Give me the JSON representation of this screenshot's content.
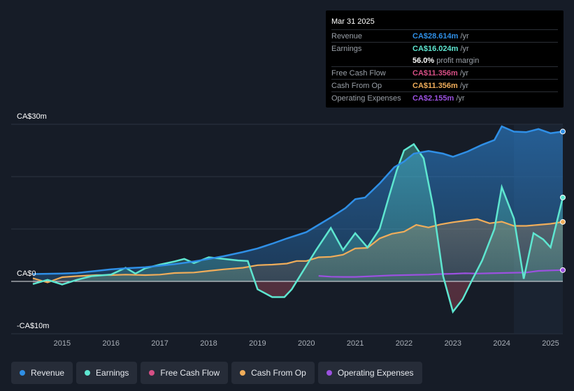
{
  "chart_data": {
    "type": "area",
    "y_axis_labels": [
      "CA$30m",
      "CA$0",
      "-CA$10m"
    ],
    "x_tick_labels": [
      "2015",
      "2016",
      "2017",
      "2018",
      "2019",
      "2020",
      "2021",
      "2022",
      "2023",
      "2024",
      "2025"
    ],
    "ylim": [
      -10,
      30
    ],
    "xlim": [
      2014.4,
      2025.25
    ],
    "forecast_start": 2024.25,
    "series": [
      {
        "name": "Revenue",
        "color": "#2f8fe6",
        "x": [
          2014.4,
          2015.0,
          2015.3,
          2015.7,
          2016.0,
          2016.3,
          2016.7,
          2017.0,
          2017.3,
          2017.7,
          2018.0,
          2018.3,
          2018.7,
          2019.0,
          2019.3,
          2019.6,
          2019.8,
          2020.0,
          2020.25,
          2020.5,
          2020.8,
          2021.0,
          2021.2,
          2021.5,
          2021.8,
          2022.0,
          2022.2,
          2022.5,
          2022.8,
          2023.0,
          2023.3,
          2023.6,
          2023.85,
          2024.0,
          2024.25,
          2024.5,
          2024.75,
          2025.0,
          2025.25
        ],
        "values": [
          1.4,
          1.5,
          1.6,
          2.0,
          2.3,
          2.5,
          2.7,
          3.0,
          3.3,
          3.8,
          4.3,
          4.8,
          5.6,
          6.3,
          7.2,
          8.2,
          8.8,
          9.4,
          10.8,
          12.2,
          14.0,
          15.7,
          16.0,
          18.7,
          21.8,
          22.9,
          24.4,
          24.9,
          24.4,
          23.8,
          24.8,
          26.1,
          27.0,
          29.6,
          28.6,
          28.5,
          29.1,
          28.3,
          28.614
        ]
      },
      {
        "name": "Earnings",
        "color": "#5ee6d0",
        "x": [
          2014.4,
          2014.7,
          2015.0,
          2015.3,
          2015.6,
          2016.0,
          2016.3,
          2016.5,
          2016.7,
          2017.0,
          2017.3,
          2017.5,
          2017.7,
          2018.0,
          2018.3,
          2018.6,
          2018.8,
          2019.0,
          2019.3,
          2019.55,
          2019.7,
          2020.0,
          2020.2,
          2020.5,
          2020.75,
          2021.0,
          2021.25,
          2021.5,
          2021.7,
          2021.85,
          2022.0,
          2022.2,
          2022.4,
          2022.6,
          2022.8,
          2023.0,
          2023.2,
          2023.4,
          2023.6,
          2023.85,
          2024.0,
          2024.25,
          2024.45,
          2024.65,
          2024.85,
          2025.0,
          2025.25
        ],
        "values": [
          -0.5,
          0.3,
          -0.6,
          0.3,
          1.0,
          1.3,
          2.6,
          1.5,
          2.5,
          3.2,
          3.8,
          4.3,
          3.5,
          4.6,
          4.3,
          4.0,
          3.9,
          -1.5,
          -3.0,
          -3.0,
          -1.5,
          3.0,
          6.0,
          10.2,
          6.0,
          9.2,
          6.5,
          10.0,
          16.5,
          21.2,
          25.0,
          26.2,
          23.5,
          14.0,
          1.0,
          -5.8,
          -3.4,
          0.4,
          4.0,
          10.0,
          18.0,
          12.0,
          0.5,
          9.2,
          8.0,
          6.5,
          16.024
        ]
      },
      {
        "name": "Free Cash Flow",
        "color": "#d64f85",
        "x": [],
        "values": []
      },
      {
        "name": "Cash From Op",
        "color": "#f0ad5a",
        "x": [
          2014.4,
          2014.7,
          2015.0,
          2015.3,
          2015.7,
          2016.0,
          2016.3,
          2016.7,
          2017.0,
          2017.3,
          2017.7,
          2018.0,
          2018.3,
          2018.7,
          2019.0,
          2019.3,
          2019.6,
          2019.8,
          2020.0,
          2020.25,
          2020.5,
          2020.75,
          2021.0,
          2021.25,
          2021.5,
          2021.75,
          2022.0,
          2022.25,
          2022.5,
          2022.75,
          2023.0,
          2023.25,
          2023.5,
          2023.75,
          2024.0,
          2024.25,
          2024.5,
          2024.75,
          2025.0,
          2025.25
        ],
        "values": [
          0.6,
          -0.2,
          0.8,
          1.0,
          1.2,
          1.2,
          1.3,
          1.2,
          1.3,
          1.6,
          1.7,
          2.0,
          2.3,
          2.6,
          3.1,
          3.2,
          3.4,
          3.9,
          3.9,
          4.6,
          4.7,
          5.1,
          6.3,
          6.4,
          8.2,
          9.1,
          9.5,
          10.8,
          10.3,
          10.9,
          11.3,
          11.6,
          11.9,
          11.1,
          11.4,
          10.6,
          10.6,
          10.8,
          11.0,
          11.356
        ]
      },
      {
        "name": "Operating Expenses",
        "color": "#9b51e0",
        "x": [
          2020.25,
          2020.5,
          2020.75,
          2021.0,
          2021.25,
          2021.5,
          2021.75,
          2022.0,
          2022.25,
          2022.5,
          2022.75,
          2023.0,
          2023.25,
          2023.5,
          2023.75,
          2024.0,
          2024.25,
          2024.5,
          2024.75,
          2025.0,
          2025.25
        ],
        "values": [
          1.05,
          0.9,
          0.85,
          0.85,
          0.95,
          1.05,
          1.15,
          1.2,
          1.25,
          1.3,
          1.4,
          1.45,
          1.55,
          1.5,
          1.55,
          1.6,
          1.65,
          1.7,
          2.0,
          2.1,
          2.155
        ]
      }
    ]
  },
  "tooltip": {
    "date": "Mar 31 2025",
    "rows": [
      {
        "label": "Revenue",
        "value": "CA$28.614m",
        "unit": "/yr",
        "color": "#2f8fe6"
      },
      {
        "label": "Earnings",
        "value": "CA$16.024m",
        "unit": "/yr",
        "color": "#5ee6d0"
      },
      {
        "label": "",
        "value": "56.0%",
        "unit": "profit margin",
        "color": "#ffffff"
      },
      {
        "label": "Free Cash Flow",
        "value": "CA$11.356m",
        "unit": "/yr",
        "color": "#d64f85"
      },
      {
        "label": "Cash From Op",
        "value": "CA$11.356m",
        "unit": "/yr",
        "color": "#f0ad5a"
      },
      {
        "label": "Operating Expenses",
        "value": "CA$2.155m",
        "unit": "/yr",
        "color": "#9b51e0"
      }
    ]
  },
  "legend": [
    {
      "label": "Revenue",
      "color": "#2f8fe6"
    },
    {
      "label": "Earnings",
      "color": "#5ee6d0"
    },
    {
      "label": "Free Cash Flow",
      "color": "#d64f85"
    },
    {
      "label": "Cash From Op",
      "color": "#f0ad5a"
    },
    {
      "label": "Operating Expenses",
      "color": "#9b51e0"
    }
  ]
}
